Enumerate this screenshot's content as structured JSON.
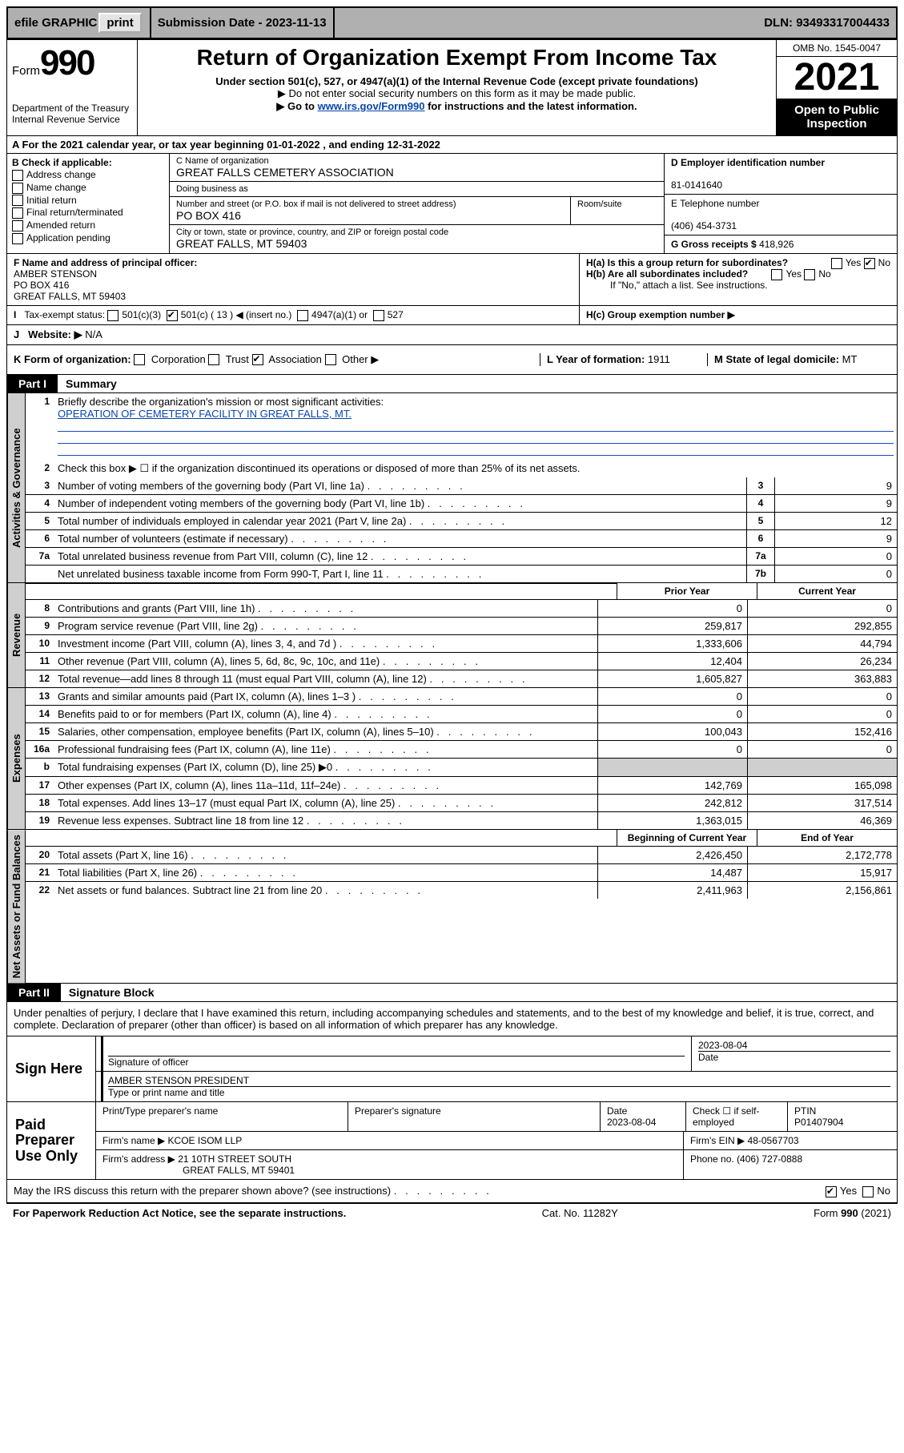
{
  "topbar": {
    "efile": "efile GRAPHIC",
    "print": "print",
    "submission": "Submission Date - 2023-11-13",
    "dln": "DLN: 93493317004433"
  },
  "header": {
    "form_label": "Form",
    "form_num": "990",
    "dept": "Department of the Treasury",
    "irs": "Internal Revenue Service",
    "title": "Return of Organization Exempt From Income Tax",
    "sub1": "Under section 501(c), 527, or 4947(a)(1) of the Internal Revenue Code (except private foundations)",
    "sub2a": "▶ Do not enter social security numbers on this form as it may be made public.",
    "sub2b_pre": "▶ Go to ",
    "sub2b_link": "www.irs.gov/Form990",
    "sub2b_post": " for instructions and the latest information.",
    "omb": "OMB No. 1545-0047",
    "year": "2021",
    "inspect": "Open to Public Inspection"
  },
  "row_a": "A For the 2021 calendar year, or tax year beginning 01-01-2022    , and ending 12-31-2022",
  "col_b": {
    "label": "B Check if applicable:",
    "items": [
      "Address change",
      "Name change",
      "Initial return",
      "Final return/terminated",
      "Amended return",
      "Application pending"
    ]
  },
  "col_c": {
    "name_lbl": "C Name of organization",
    "name": "GREAT FALLS CEMETERY ASSOCIATION",
    "dba_lbl": "Doing business as",
    "dba": "",
    "street_lbl": "Number and street (or P.O. box if mail is not delivered to street address)",
    "street": "PO BOX 416",
    "room_lbl": "Room/suite",
    "room": "",
    "city_lbl": "City or town, state or province, country, and ZIP or foreign postal code",
    "city": "GREAT FALLS, MT  59403"
  },
  "col_d": {
    "ein_lbl": "D Employer identification number",
    "ein": "81-0141640",
    "phone_lbl": "E Telephone number",
    "phone": "(406) 454-3731",
    "gross_lbl": "G Gross receipts $",
    "gross": "418,926"
  },
  "f": {
    "lbl": "F Name and address of principal officer:",
    "name": "AMBER STENSON",
    "street": "PO BOX 416",
    "city": "GREAT FALLS, MT  59403"
  },
  "h": {
    "a": "H(a)  Is this a group return for subordinates?",
    "a_yes": "Yes",
    "a_no": "No",
    "b": "H(b)  Are all subordinates included?",
    "b_yes": "Yes",
    "b_no": "No",
    "b_note": "If \"No,\" attach a list. See instructions.",
    "c": "H(c)  Group exemption number ▶"
  },
  "i": {
    "lbl": "Tax-exempt status:",
    "o501c3": "501(c)(3)",
    "o501c": "501(c) ( 13 ) ◀ (insert no.)",
    "o4947": "4947(a)(1) or",
    "o527": "527"
  },
  "j": {
    "lbl": "Website: ▶",
    "val": "N/A"
  },
  "k": {
    "lbl": "K Form of organization:",
    "opts": [
      "Corporation",
      "Trust",
      "Association",
      "Other ▶"
    ],
    "checked_idx": 2
  },
  "l": {
    "lbl": "L Year of formation:",
    "val": "1911"
  },
  "m": {
    "lbl": "M State of legal domicile:",
    "val": "MT"
  },
  "parts": {
    "p1_tag": "Part I",
    "p1_title": "Summary",
    "p2_tag": "Part II",
    "p2_title": "Signature Block"
  },
  "summary": {
    "q1_lbl": "Briefly describe the organization's mission or most significant activities:",
    "q1_val": "OPERATION OF CEMETERY FACILITY IN GREAT FALLS, MT.",
    "q2": "Check this box ▶ ☐  if the organization discontinued its operations or disposed of more than 25% of its net assets.",
    "gov_label": "Activities & Governance",
    "rev_label": "Revenue",
    "exp_label": "Expenses",
    "net_label": "Net Assets or Fund Balances",
    "gov_rows": [
      {
        "n": "3",
        "t": "Number of voting members of the governing body (Part VI, line 1a)",
        "c": "3",
        "v": "9"
      },
      {
        "n": "4",
        "t": "Number of independent voting members of the governing body (Part VI, line 1b)",
        "c": "4",
        "v": "9"
      },
      {
        "n": "5",
        "t": "Total number of individuals employed in calendar year 2021 (Part V, line 2a)",
        "c": "5",
        "v": "12"
      },
      {
        "n": "6",
        "t": "Total number of volunteers (estimate if necessary)",
        "c": "6",
        "v": "9"
      },
      {
        "n": "7a",
        "t": "Total unrelated business revenue from Part VIII, column (C), line 12",
        "c": "7a",
        "v": "0"
      },
      {
        "n": "",
        "t": "Net unrelated business taxable income from Form 990-T, Part I, line 11",
        "c": "7b",
        "v": "0"
      }
    ],
    "col_hdr_prior": "Prior Year",
    "col_hdr_curr": "Current Year",
    "rev_rows": [
      {
        "n": "8",
        "t": "Contributions and grants (Part VIII, line 1h)",
        "p": "0",
        "c": "0"
      },
      {
        "n": "9",
        "t": "Program service revenue (Part VIII, line 2g)",
        "p": "259,817",
        "c": "292,855"
      },
      {
        "n": "10",
        "t": "Investment income (Part VIII, column (A), lines 3, 4, and 7d )",
        "p": "1,333,606",
        "c": "44,794"
      },
      {
        "n": "11",
        "t": "Other revenue (Part VIII, column (A), lines 5, 6d, 8c, 9c, 10c, and 11e)",
        "p": "12,404",
        "c": "26,234"
      },
      {
        "n": "12",
        "t": "Total revenue—add lines 8 through 11 (must equal Part VIII, column (A), line 12)",
        "p": "1,605,827",
        "c": "363,883"
      }
    ],
    "exp_rows": [
      {
        "n": "13",
        "t": "Grants and similar amounts paid (Part IX, column (A), lines 1–3 )",
        "p": "0",
        "c": "0"
      },
      {
        "n": "14",
        "t": "Benefits paid to or for members (Part IX, column (A), line 4)",
        "p": "0",
        "c": "0"
      },
      {
        "n": "15",
        "t": "Salaries, other compensation, employee benefits (Part IX, column (A), lines 5–10)",
        "p": "100,043",
        "c": "152,416"
      },
      {
        "n": "16a",
        "t": "Professional fundraising fees (Part IX, column (A), line 11e)",
        "p": "0",
        "c": "0"
      },
      {
        "n": "b",
        "t": "Total fundraising expenses (Part IX, column (D), line 25) ▶0",
        "p": "",
        "c": "",
        "shade": true
      },
      {
        "n": "17",
        "t": "Other expenses (Part IX, column (A), lines 11a–11d, 11f–24e)",
        "p": "142,769",
        "c": "165,098"
      },
      {
        "n": "18",
        "t": "Total expenses. Add lines 13–17 (must equal Part IX, column (A), line 25)",
        "p": "242,812",
        "c": "317,514"
      },
      {
        "n": "19",
        "t": "Revenue less expenses. Subtract line 18 from line 12",
        "p": "1,363,015",
        "c": "46,369"
      }
    ],
    "net_hdr_beg": "Beginning of Current Year",
    "net_hdr_end": "End of Year",
    "net_rows": [
      {
        "n": "20",
        "t": "Total assets (Part X, line 16)",
        "p": "2,426,450",
        "c": "2,172,778"
      },
      {
        "n": "21",
        "t": "Total liabilities (Part X, line 26)",
        "p": "14,487",
        "c": "15,917"
      },
      {
        "n": "22",
        "t": "Net assets or fund balances. Subtract line 21 from line 20",
        "p": "2,411,963",
        "c": "2,156,861"
      }
    ]
  },
  "sig": {
    "decl": "Under penalties of perjury, I declare that I have examined this return, including accompanying schedules and statements, and to the best of my knowledge and belief, it is true, correct, and complete. Declaration of preparer (other than officer) is based on all information of which preparer has any knowledge.",
    "sign_here": "Sign Here",
    "sig_officer": "Signature of officer",
    "date_lbl": "Date",
    "date1": "2023-08-04",
    "name_title": "AMBER STENSON  PRESIDENT",
    "name_title_lbl": "Type or print name and title",
    "paid": "Paid Preparer Use Only",
    "prep_name_lbl": "Print/Type preparer's name",
    "prep_sig_lbl": "Preparer's signature",
    "prep_date_lbl": "Date",
    "prep_date": "2023-08-04",
    "check_lbl": "Check ☐ if self-employed",
    "ptin_lbl": "PTIN",
    "ptin": "P01407904",
    "firm_name_lbl": "Firm's name      ▶",
    "firm_name": "KCOE ISOM LLP",
    "firm_ein_lbl": "Firm's EIN ▶",
    "firm_ein": "48-0567703",
    "firm_addr_lbl": "Firm's address ▶",
    "firm_addr1": "21 10TH STREET SOUTH",
    "firm_addr2": "GREAT FALLS, MT  59401",
    "firm_phone_lbl": "Phone no.",
    "firm_phone": "(406) 727-0888",
    "may_discuss": "May the IRS discuss this return with the preparer shown above? (see instructions)",
    "yes": "Yes",
    "no": "No"
  },
  "footer": {
    "left": "For Paperwork Reduction Act Notice, see the separate instructions.",
    "mid": "Cat. No. 11282Y",
    "right": "Form 990 (2021)"
  }
}
